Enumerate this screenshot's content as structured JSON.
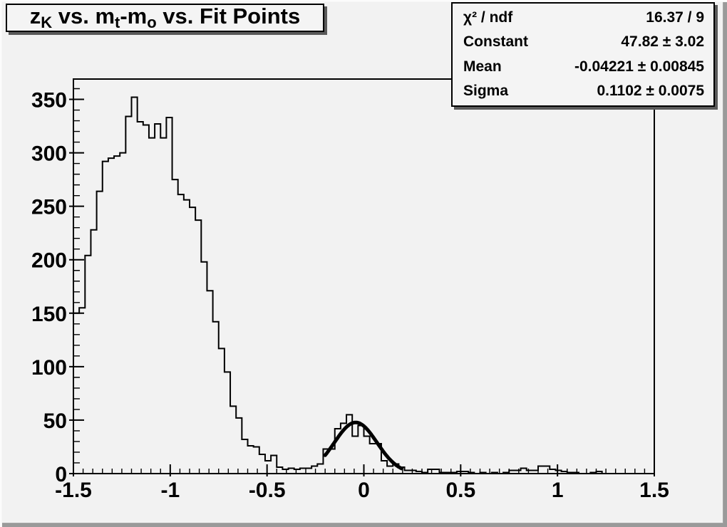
{
  "colors": {
    "canvas_background": "#f2f2f2",
    "line_color": "#000000",
    "box_background": "#f4f4f4",
    "box_shadow": "#5a5a5a",
    "bevel_shadow": "#9a9a9a",
    "bevel_highlight": "#fcfcfc"
  },
  "title_box": {
    "plain": "z_K vs. m_t-m_o vs. Fit Points",
    "segments": [
      {
        "text": "z"
      },
      {
        "sub": "K"
      },
      {
        "text": " vs. m"
      },
      {
        "sub": "t"
      },
      {
        "text": "-m"
      },
      {
        "sub": "o"
      },
      {
        "text": " vs. Fit Points"
      }
    ]
  },
  "stats_box": {
    "rows": [
      {
        "label": "χ² / ndf",
        "value": "16.37 / 9"
      },
      {
        "label": "Constant",
        "value": "47.82 ± 3.02"
      },
      {
        "label": "Mean",
        "value": "-0.04221 ± 0.00845"
      },
      {
        "label": "Sigma",
        "value": "0.1102 ± 0.0075"
      }
    ]
  },
  "chart_data": {
    "type": "bar",
    "subtype": "histogram-step",
    "title": "z_K vs. m_t-m_o vs. Fit Points",
    "xlabel": "",
    "ylabel": "",
    "xlim": [
      -1.5,
      1.5
    ],
    "ylim": [
      0,
      369
    ],
    "grid": false,
    "legend": false,
    "x_major_ticks": [
      -1.5,
      -1,
      -0.5,
      0,
      0.5,
      1,
      1.5
    ],
    "x_tick_labels": [
      "-1.5",
      "-1",
      "-0.5",
      "0",
      "0.5",
      "1",
      "1.5"
    ],
    "x_minor_step": 0.05,
    "y_major_ticks": [
      0,
      50,
      100,
      150,
      200,
      250,
      300,
      350
    ],
    "y_minor_step": 10,
    "bins": {
      "start": -1.5,
      "width": 0.03,
      "values": [
        150,
        155,
        204,
        228,
        264,
        292,
        295,
        297,
        300,
        334,
        352,
        329,
        326,
        314,
        327,
        314,
        333,
        275,
        261,
        256,
        249,
        237,
        198,
        171,
        142,
        117,
        95,
        63,
        52,
        32,
        26,
        25,
        18,
        12,
        17,
        6,
        4,
        5,
        4,
        5,
        5,
        7,
        9,
        23,
        23,
        42,
        47,
        55,
        35,
        45,
        35,
        28,
        28,
        12,
        7,
        9,
        6,
        3,
        3,
        2,
        1,
        4,
        4,
        1,
        1,
        1,
        2,
        2,
        1,
        0,
        1,
        0,
        1,
        0,
        1,
        3,
        3,
        5,
        3,
        3,
        7,
        7,
        4,
        3,
        2,
        1,
        1,
        0,
        0,
        1,
        2,
        0,
        0,
        0,
        0,
        0,
        0,
        0,
        0,
        0
      ]
    },
    "fit": {
      "type": "gaussian",
      "constant": 47.82,
      "mean": -0.04221,
      "sigma": 0.1102,
      "chi2": 16.37,
      "ndf": 9,
      "draw_range": [
        -0.2,
        0.195
      ]
    }
  }
}
